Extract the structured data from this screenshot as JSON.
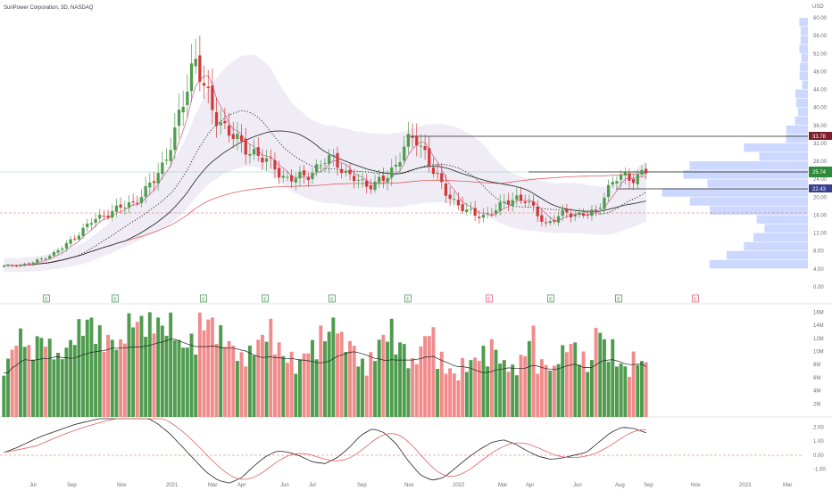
{
  "header": {
    "title": "SunPower Corporation, 3D, NASDAQ"
  },
  "currency": "USD",
  "price_axis": {
    "ticks": [
      "60.00",
      "56.00",
      "52.00",
      "48.00",
      "44.00",
      "40.00",
      "36.00",
      "32.00",
      "28.00",
      "24.00",
      "20.00",
      "16.00",
      "12.00",
      "8.00",
      "4.00",
      "0.00"
    ]
  },
  "price_badges": {
    "top": "33.78",
    "current": "25.74",
    "lower": "22.43"
  },
  "volume_axis": {
    "ticks": [
      "16M",
      "14M",
      "12M",
      "10M",
      "8M",
      "6M",
      "4M",
      "2M"
    ]
  },
  "indicator_axis": {
    "ticks": [
      "2.00",
      "1.00",
      "0.00",
      "-1.00"
    ]
  },
  "time_axis": {
    "labels": [
      "Jul",
      "Sep",
      "Nov",
      "2021",
      "Mar",
      "Apr",
      "Jun",
      "Jul",
      "Sep",
      "Nov",
      "2022",
      "Mar",
      "Apr",
      "Jun",
      "Aug",
      "Sep",
      "Nov",
      "2023",
      "Mar"
    ]
  },
  "earnings_markers": [
    "E",
    "E",
    "E",
    "E",
    "E",
    "E",
    "E",
    "E",
    "E",
    "E"
  ],
  "colors": {
    "up": "#4f9c4f",
    "down": "#f28b8b",
    "badge_top": "#7a1f2b",
    "badge_current": "#2e8b3a",
    "badge_lower": "#3b3f8f",
    "volume_profile": "#c7d4ff",
    "band": "#ece9f5",
    "ma_slow": "#e06060"
  },
  "chart_data": {
    "type": "candlestick",
    "title": "SunPower Corporation, 3D, NASDAQ",
    "ylim": [
      0,
      62
    ],
    "levels": [
      33.78,
      25.74,
      22.43
    ],
    "price_path": [
      4.6,
      4.8,
      5.0,
      5.5,
      6.5,
      7.5,
      9,
      11,
      13,
      15,
      16,
      17,
      18,
      19,
      21,
      24,
      28,
      34,
      42,
      52,
      44,
      38,
      36,
      33,
      31,
      30,
      28,
      27,
      24,
      24,
      25,
      26,
      28,
      29,
      25,
      24,
      23,
      23,
      24,
      27,
      32,
      33,
      30,
      25,
      21,
      19,
      17,
      16,
      16,
      17,
      19,
      20,
      19,
      17,
      14,
      15,
      17,
      16,
      16,
      17,
      21,
      24,
      25,
      24,
      25.74
    ],
    "volume_millions": [
      9,
      12,
      14,
      11,
      13,
      12,
      10,
      12,
      15,
      16,
      14,
      13,
      12,
      16,
      16,
      16,
      16,
      15,
      16,
      12,
      13,
      16,
      16,
      14,
      12,
      10,
      11,
      13,
      15,
      12,
      10,
      9,
      11,
      12,
      14,
      16,
      13,
      12,
      9,
      10,
      13,
      15,
      12,
      9,
      11,
      14,
      10,
      8,
      7,
      9,
      10,
      11,
      12,
      9,
      8,
      10,
      14,
      9,
      8,
      11,
      12,
      10,
      9,
      15,
      12,
      9,
      8,
      10,
      9
    ],
    "volume_ylim": [
      0,
      17
    ],
    "oscillator": [
      0.2,
      0.5,
      0.9,
      1.3,
      1.6,
      1.9,
      2.2,
      2.4,
      2.6,
      2.8,
      3.0,
      3.0,
      2.7,
      2.2,
      1.5,
      0.6,
      -0.3,
      -1.2,
      -1.8,
      -2.0,
      -1.6,
      -0.8,
      -0.1,
      0.3,
      0.2,
      -0.1,
      -0.5,
      -0.6,
      -0.2,
      0.5,
      1.4,
      1.9,
      1.6,
      0.8,
      -0.4,
      -1.4,
      -1.8,
      -1.6,
      -0.9,
      -0.2,
      0.4,
      0.9,
      1.1,
      0.8,
      0.3,
      -0.1,
      -0.3,
      -0.2,
      0.0,
      0.2,
      0.9,
      1.6,
      2.0,
      1.9,
      1.6
    ],
    "oscillator_ylim": [
      -1.6,
      2.6
    ]
  }
}
